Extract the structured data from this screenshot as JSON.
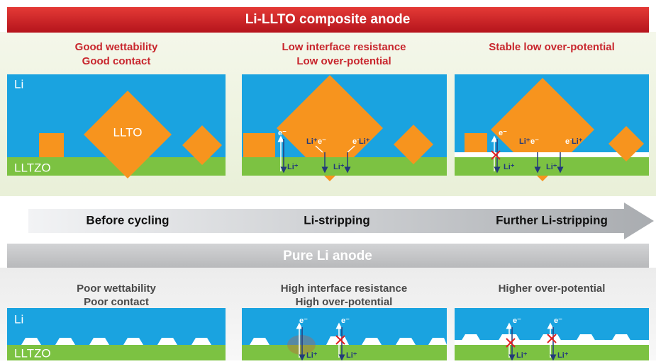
{
  "composite": {
    "title": "Li-LLTO composite anode",
    "panels": [
      {
        "heading": [
          "Good wettability",
          "Good contact"
        ]
      },
      {
        "heading": [
          "Low interface resistance",
          "Low over-potential"
        ]
      },
      {
        "heading": [
          "Stable low over-potential"
        ]
      }
    ]
  },
  "labels": {
    "li": "Li",
    "llto": "LLTO",
    "lltzo": "LLTZO",
    "electron": "e⁻",
    "lithium_ion": "Li⁺"
  },
  "stages": [
    "Before cycling",
    "Li-stripping",
    "Further Li-stripping"
  ],
  "pure": {
    "title": "Pure Li anode",
    "panels": [
      {
        "heading": [
          "Poor wettability",
          "Poor contact"
        ]
      },
      {
        "heading": [
          "High interface resistance",
          "High over-potential"
        ]
      },
      {
        "heading": [
          "Higher over-potential"
        ]
      }
    ]
  }
}
